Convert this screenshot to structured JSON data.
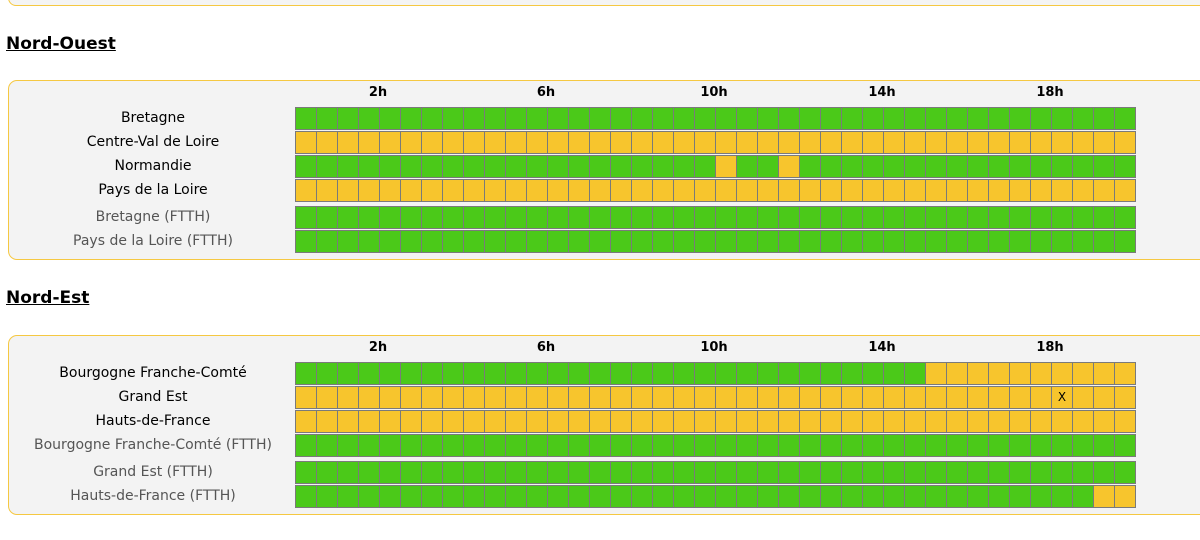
{
  "colors": {
    "ok": "#4bc919",
    "warn": "#f7c52d"
  },
  "hours": [
    "2h",
    "6h",
    "10h",
    "14h",
    "18h"
  ],
  "sections": [
    {
      "title": "Nord-Ouest",
      "rows": [
        {
          "label": "Bretagne",
          "ftth": false,
          "cells": "gggggggggggggggggggggggggggggggggggggggg"
        },
        {
          "label": "Centre-Val de Loire",
          "ftth": false,
          "cells": "yyyyyyyyyyyyyyyyyyyyyyyyyyyyyyyyyyyyyyyy"
        },
        {
          "label": "Normandie",
          "ftth": false,
          "cells": "ggggggggggggggggggggyggygggggggggggggggg"
        },
        {
          "label": "Pays de la Loire",
          "ftth": false,
          "cells": "yyyyyyyyyyyyyyyyyyyyyyyyyyyyyyyyyyyyyyyy"
        },
        {
          "label": "Bretagne (FTTH)",
          "ftth": true,
          "cells": "gggggggggggggggggggggggggggggggggggggggg"
        },
        {
          "label": "Pays de la Loire (FTTH)",
          "ftth": true,
          "cells": "gggggggggggggggggggggggggggggggggggggggg"
        }
      ]
    },
    {
      "title": "Nord-Est",
      "rows": [
        {
          "label": "Bourgogne Franche-Comté",
          "ftth": false,
          "cells": "ggggggggggggggggggggggggggggggyyyyyyyyyy"
        },
        {
          "label": "Grand Est",
          "ftth": false,
          "cells": "yyyyyyyyyyyyyyyyyyyyyyyyyyyyyyyyyyyyyyyy",
          "mark_index": 36,
          "mark": "X"
        },
        {
          "label": "Hauts-de-France",
          "ftth": false,
          "cells": "yyyyyyyyyyyyyyyyyyyyyyyyyyyyyyyyyyyyyyyy"
        },
        {
          "label": "Bourgogne Franche-Comté (FTTH)",
          "ftth": true,
          "cells": "gggggggggggggggggggggggggggggggggggggggg"
        },
        {
          "label": "Grand Est (FTTH)",
          "ftth": true,
          "cells": "gggggggggggggggggggggggggggggggggggggggg"
        },
        {
          "label": "Hauts-de-France (FTTH)",
          "ftth": true,
          "cells": "ggggggggggggggggggggggggggggggggggggggyy"
        }
      ]
    }
  ]
}
